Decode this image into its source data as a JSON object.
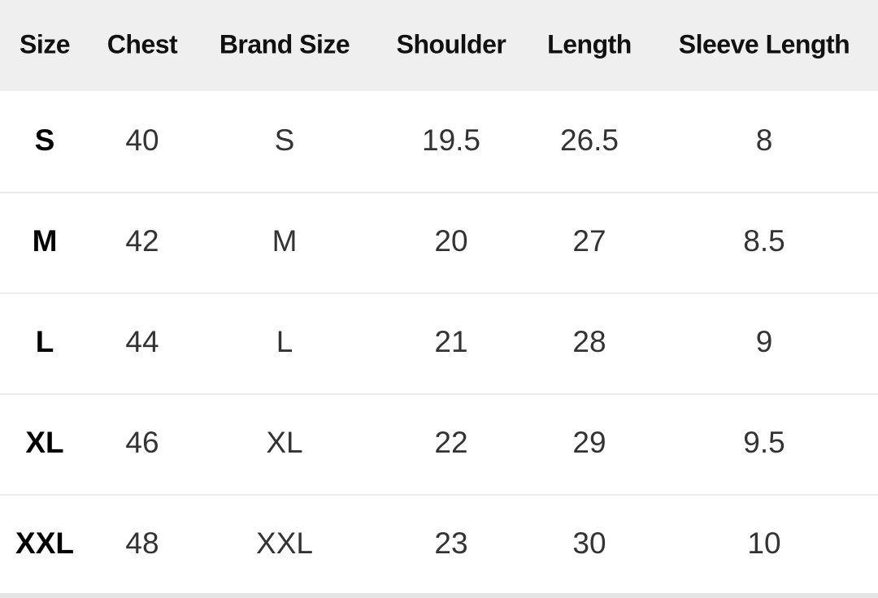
{
  "table": {
    "headers": [
      "Size",
      "Chest",
      "Brand Size",
      "Shoulder",
      "Length",
      "Sleeve Length"
    ],
    "rows": [
      [
        "S",
        "40",
        "S",
        "19.5",
        "26.5",
        "8"
      ],
      [
        "M",
        "42",
        "M",
        "20",
        "27",
        "8.5"
      ],
      [
        "L",
        "44",
        "L",
        "21",
        "28",
        "9"
      ],
      [
        "XL",
        "46",
        "XL",
        "22",
        "29",
        "9.5"
      ],
      [
        "XXL",
        "48",
        "XXL",
        "23",
        "30",
        "10"
      ]
    ]
  }
}
